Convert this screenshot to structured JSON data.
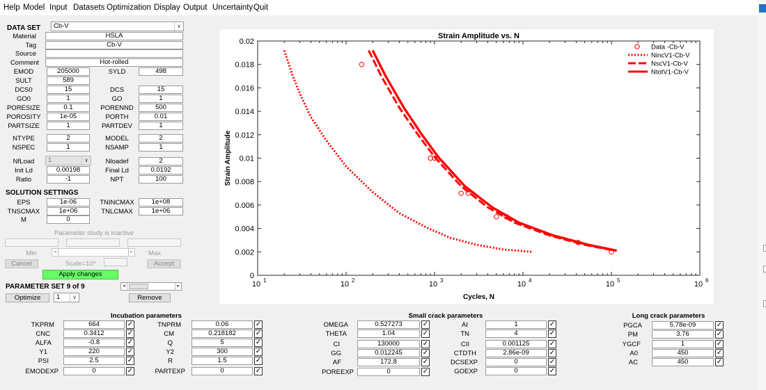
{
  "menu": [
    "Help",
    "Model",
    "Input",
    "Datasets",
    "Optimization",
    "Display",
    "Output",
    "Uncertainty",
    "Quit"
  ],
  "dataset": {
    "heading": "DATA SET",
    "selected": "Cb-V",
    "material_label": "Material",
    "material": "HSLA",
    "tag_label": "Tag",
    "tag": "Cb-V",
    "source_label": "Source",
    "source": "",
    "comment_label": "Comment",
    "comment": "Hot-rolled"
  },
  "params": {
    "EMOD": {
      "label": "EMOD",
      "value": "205000"
    },
    "SYLD": {
      "label": "SYLD",
      "value": "498"
    },
    "SULT": {
      "label": "SULT",
      "value": "589"
    },
    "DCS0": {
      "label": "DCS0",
      "value": "15"
    },
    "DCS": {
      "label": "DCS",
      "value": "15"
    },
    "GO0": {
      "label": "GO0",
      "value": "1"
    },
    "GO": {
      "label": "GO",
      "value": "1"
    },
    "PORESIZE": {
      "label": "PORESIZE",
      "value": "0.1"
    },
    "PORENND": {
      "label": "PORENND",
      "value": "500"
    },
    "POROSITY": {
      "label": "POROSITY",
      "value": "1e-05"
    },
    "PORTH": {
      "label": "PORTH",
      "value": "0.01"
    },
    "PARTSIZE": {
      "label": "PARTSIZE",
      "value": "1"
    },
    "PARTDEV": {
      "label": "PARTDEV",
      "value": "1"
    },
    "NTYPE": {
      "label": "NTYPE",
      "value": "2"
    },
    "MODEL": {
      "label": "MODEL",
      "value": "2"
    },
    "NSPEC": {
      "label": "NSPEC",
      "value": "1"
    },
    "NSAMP": {
      "label": "NSAMP",
      "value": "1"
    },
    "NfLoad": {
      "label": "NfLoad",
      "value": "1"
    },
    "Nloadef": {
      "label": "Nloadef",
      "value": "2"
    },
    "InitLd": {
      "label": "Init Ld",
      "value": "0.00198"
    },
    "FinalLd": {
      "label": "Final Ld",
      "value": "0.0192"
    },
    "Ratio": {
      "label": "Ratio",
      "value": "-1"
    },
    "NPT": {
      "label": "NPT",
      "value": "100"
    }
  },
  "solution": {
    "heading": "SOLUTION SETTINGS",
    "EPS": {
      "label": "EPS",
      "value": "1e-06"
    },
    "TNINCMAX": {
      "label": "TNINCMAX",
      "value": "1e+08"
    },
    "TNSCMAX": {
      "label": "TNSCMAX",
      "value": "1e+06"
    },
    "TNLCMAX": {
      "label": "TNLCMAX",
      "value": "1e+06"
    },
    "M": {
      "label": "M",
      "value": "0"
    }
  },
  "study": {
    "status": "Parameter study is inactive",
    "min_label": "Min",
    "max_label": "Max",
    "cancel": "Cancel",
    "scale": "Scale=10^",
    "accept": "Accept",
    "apply": "Apply changes"
  },
  "paramset": {
    "heading": "PARAMETER SET 9 of 9",
    "optimize": "Optimize",
    "selected": "1",
    "remove": "Remove"
  },
  "incubation": {
    "heading": "Incubation parameters",
    "rows": [
      {
        "l1": "TKPRM",
        "v1": "664",
        "l2": "TNPRM",
        "v2": "0.06"
      },
      {
        "l1": "CNC",
        "v1": "0.3412",
        "l2": "CM",
        "v2": "0.218182"
      },
      {
        "l1": "ALFA",
        "v1": "-0.8",
        "l2": "Q",
        "v2": "5"
      },
      {
        "l1": "Y1",
        "v1": "220",
        "l2": "Y2",
        "v2": "300"
      },
      {
        "l1": "PSI",
        "v1": "2.5",
        "l2": "R",
        "v2": "1.5"
      },
      {
        "l1": "EMODEXP",
        "v1": "0",
        "l2": "PARTEXP",
        "v2": "0"
      }
    ]
  },
  "smallcrack": {
    "heading": "Small crack parameters",
    "rows": [
      {
        "l1": "OMEGA",
        "v1": "0.527273",
        "l2": "AI",
        "v2": "1"
      },
      {
        "l1": "THETA",
        "v1": "1.04",
        "l2": "TN",
        "v2": "4"
      },
      {
        "l1": "CI",
        "v1": "130000",
        "l2": "CII",
        "v2": "0.001125"
      },
      {
        "l1": "GG",
        "v1": "0.012245",
        "l2": "CTDTH",
        "v2": "2.86e-09"
      },
      {
        "l1": "AF",
        "v1": "172.8",
        "l2": "DCSEXP",
        "v2": "0"
      },
      {
        "l1": "POREEXP",
        "v1": "0",
        "l2": "GOEXP",
        "v2": "0"
      }
    ]
  },
  "longcrack": {
    "heading": "Long crack parameters",
    "rows": [
      {
        "l": "PGCA",
        "v": "5.78e-09"
      },
      {
        "l": "PM",
        "v": "3.76"
      },
      {
        "l": "YGCF",
        "v": "1"
      },
      {
        "l": "A0",
        "v": "450"
      },
      {
        "l": "AC",
        "v": "450"
      }
    ]
  },
  "chart_data": {
    "type": "line",
    "title": "Strain Amplitude vs. N",
    "xlabel": "Cycles, N",
    "ylabel": "Strain Amplitude",
    "xscale": "log",
    "xlim": [
      10,
      1000000
    ],
    "ylim": [
      0,
      0.02
    ],
    "xticks": [
      {
        "v": 10,
        "base": "10",
        "exp": "1"
      },
      {
        "v": 100,
        "base": "10",
        "exp": "2"
      },
      {
        "v": 1000,
        "base": "10",
        "exp": "3"
      },
      {
        "v": 10000,
        "base": "10",
        "exp": "4"
      },
      {
        "v": 100000,
        "base": "10",
        "exp": "5"
      },
      {
        "v": 1000000,
        "base": "10",
        "exp": "6"
      }
    ],
    "yticks": [
      0,
      0.002,
      0.004,
      0.006,
      0.008,
      0.01,
      0.012,
      0.014,
      0.016,
      0.018,
      0.02
    ],
    "ytick_labels": [
      "0",
      "0.002",
      "0.004",
      "0.006",
      "0.008",
      "0.01",
      "0.012",
      "0.014",
      "0.016",
      "0.018",
      "0.02"
    ],
    "grid": false,
    "legend_position": "top-right",
    "color": "#ff0000",
    "series": [
      {
        "name": "Data -Cb-V",
        "style": "markers",
        "points": [
          [
            150,
            0.018
          ],
          [
            900,
            0.01
          ],
          [
            1000,
            0.01
          ],
          [
            2000,
            0.007
          ],
          [
            2400,
            0.007
          ],
          [
            5000,
            0.005
          ],
          [
            6500,
            0.005
          ],
          [
            42000,
            0.0028
          ],
          [
            100000,
            0.002
          ]
        ]
      },
      {
        "name": "NincV1-Cb-V",
        "style": "dotted",
        "points": [
          [
            20,
            0.0192
          ],
          [
            25,
            0.017
          ],
          [
            30,
            0.0155
          ],
          [
            40,
            0.0135
          ],
          [
            60,
            0.0115
          ],
          [
            100,
            0.0093
          ],
          [
            200,
            0.0071
          ],
          [
            400,
            0.0053
          ],
          [
            800,
            0.0041
          ],
          [
            1500,
            0.0032
          ],
          [
            3000,
            0.0026
          ],
          [
            6000,
            0.0022
          ],
          [
            13000,
            0.002
          ]
        ]
      },
      {
        "name": "NscV1-Cb-V",
        "style": "dashed",
        "points": [
          [
            180,
            0.0192
          ],
          [
            250,
            0.017
          ],
          [
            400,
            0.0143
          ],
          [
            650,
            0.012
          ],
          [
            1000,
            0.0101
          ],
          [
            2000,
            0.0076
          ],
          [
            4000,
            0.0058
          ],
          [
            8000,
            0.0045
          ],
          [
            20000,
            0.0034
          ],
          [
            50000,
            0.0026
          ],
          [
            110000,
            0.0021
          ]
        ]
      },
      {
        "name": "NtotV1-Cb-V",
        "style": "solid",
        "points": [
          [
            200,
            0.0192
          ],
          [
            280,
            0.017
          ],
          [
            450,
            0.0143
          ],
          [
            720,
            0.012
          ],
          [
            1100,
            0.0101
          ],
          [
            2200,
            0.0076
          ],
          [
            4500,
            0.0058
          ],
          [
            9000,
            0.0045
          ],
          [
            22000,
            0.0034
          ],
          [
            55000,
            0.0026
          ],
          [
            115000,
            0.0021
          ]
        ]
      }
    ]
  }
}
